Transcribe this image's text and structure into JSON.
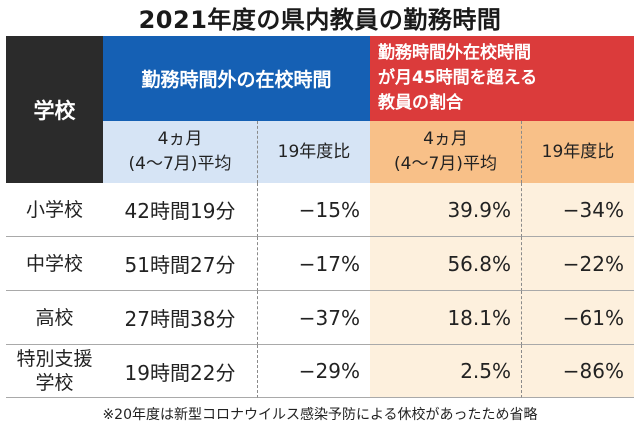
{
  "title": "2021年度の県内教員の勤務時間",
  "header": {
    "school": "学校",
    "group1": "勤務時間外の在校時間",
    "group2": "勤務時間外在校時間\nが月45時間を超える\n教員の割合",
    "sub_period": "4ヵ月\n(4〜7月)平均",
    "sub_ratio": "19年度比"
  },
  "rows": [
    {
      "school": "小学校",
      "hours": "42時間19分",
      "hours_change": "−15%",
      "rate": "39.9%",
      "rate_change": "−34%"
    },
    {
      "school": "中学校",
      "hours": "51時間27分",
      "hours_change": "−17%",
      "rate": "56.8%",
      "rate_change": "−22%"
    },
    {
      "school": "高校",
      "hours": "27時間38分",
      "hours_change": "−37%",
      "rate": "18.1%",
      "rate_change": "−61%"
    },
    {
      "school": "特別支援\n学校",
      "hours": "19時間22分",
      "hours_change": "−29%",
      "rate": "2.5%",
      "rate_change": "−86%"
    }
  ],
  "footnote": "※20年度は新型コロナウイルス感染予防による休校があったため省略",
  "colors": {
    "school_header": "#2b2b2b",
    "group1_header": "#1560b4",
    "group2_header": "#db3b3b",
    "blue_sub": "#d6e4f5",
    "orange_sub": "#f8c088",
    "cream_data": "#fdf0dd"
  }
}
